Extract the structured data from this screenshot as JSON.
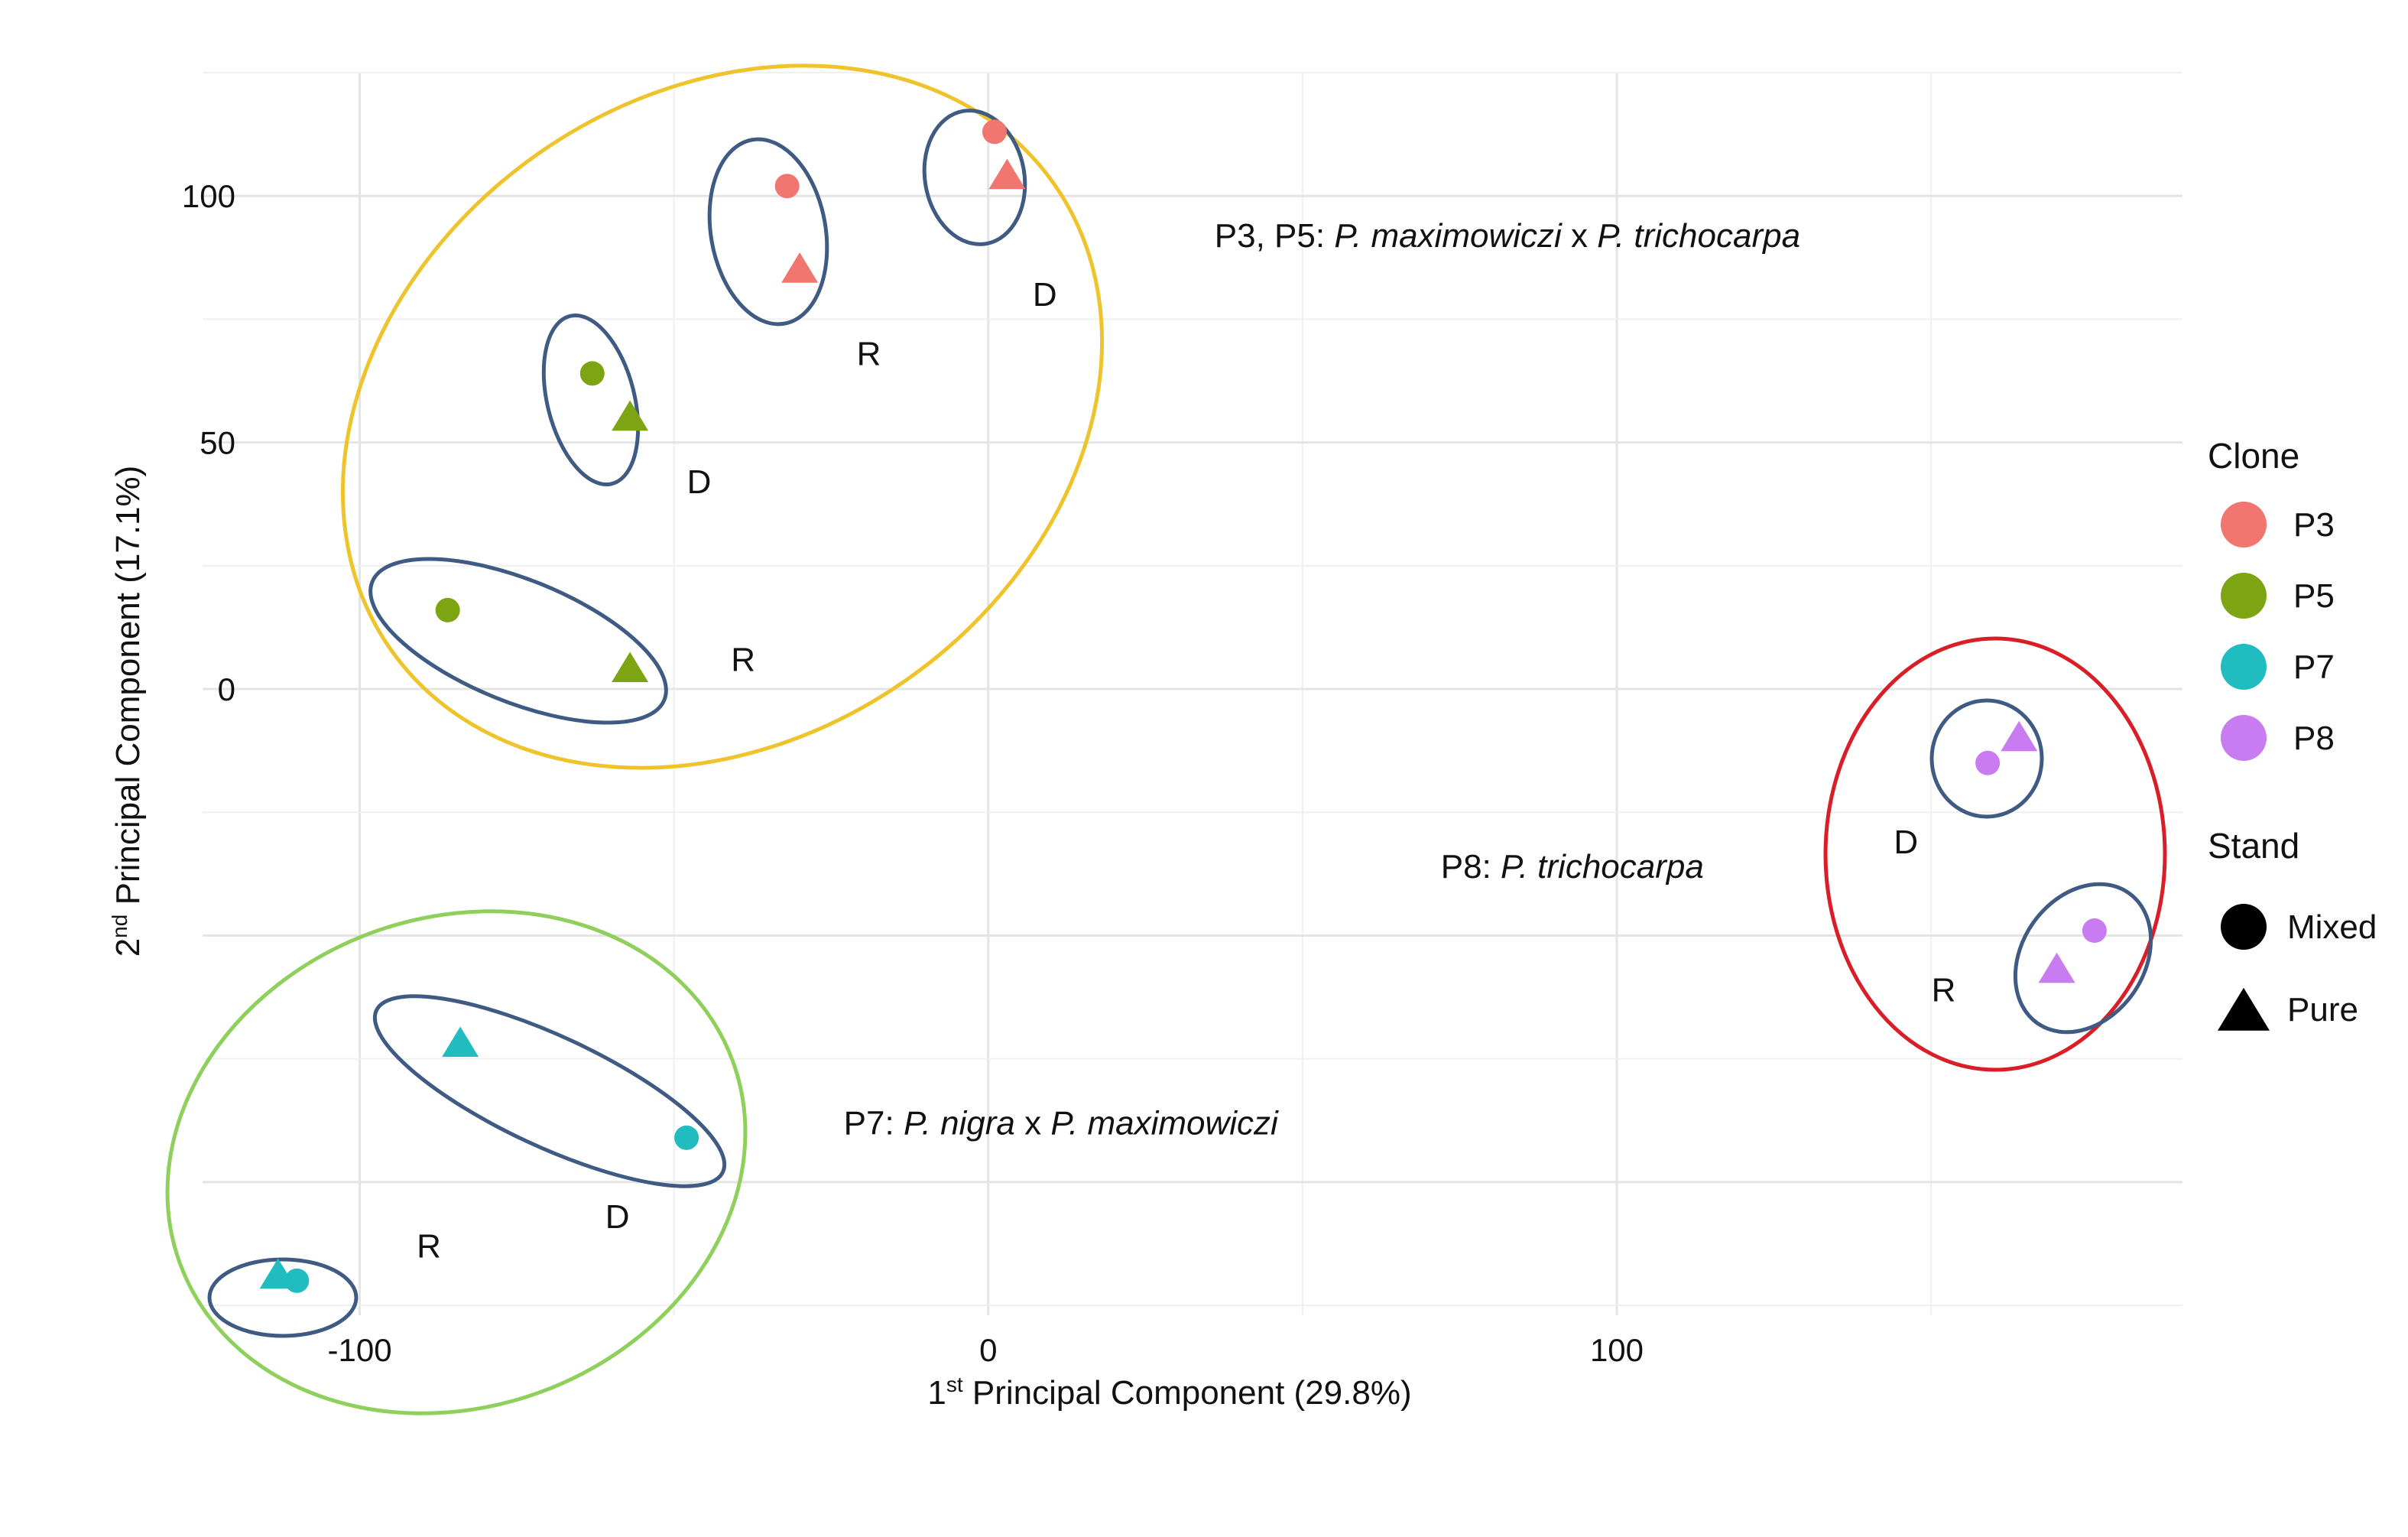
{
  "chart_data": {
    "type": "scatter",
    "xlabel": {
      "prefix": "1",
      "sup": "st",
      "rest": " Principal Component (29.8%)"
    },
    "ylabel": {
      "prefix": "2",
      "sup": "nd",
      "rest": " Principal Component (17.1%)"
    },
    "xlim": [
      -125,
      190
    ],
    "ylim": [
      -127,
      125
    ],
    "x_ticks": [
      -100,
      0,
      100
    ],
    "x_tick_labels": [
      "-100",
      "0",
      "100"
    ],
    "y_ticks": [
      0,
      50,
      100
    ],
    "y_tick_labels": [
      "0",
      "50",
      "100"
    ],
    "grid": true,
    "legend_position": "right",
    "legend": {
      "clone_title": "Clone",
      "clones": [
        {
          "name": "P3",
          "color": "#F0766F"
        },
        {
          "name": "P5",
          "color": "#7CA413"
        },
        {
          "name": "P7",
          "color": "#20BCC0"
        },
        {
          "name": "P8",
          "color": "#C97BF1"
        }
      ],
      "stand_title": "Stand",
      "stands": [
        {
          "name": "Mixed",
          "shape": "circle"
        },
        {
          "name": "Pure",
          "shape": "triangle"
        }
      ]
    },
    "points": [
      {
        "x": 1,
        "y": 113,
        "clone": "P3",
        "stand": "Mixed"
      },
      {
        "x": 3,
        "y": 104,
        "clone": "P3",
        "stand": "Pure"
      },
      {
        "x": -32,
        "y": 102,
        "clone": "P3",
        "stand": "Mixed"
      },
      {
        "x": -30,
        "y": 85,
        "clone": "P3",
        "stand": "Pure"
      },
      {
        "x": -63,
        "y": 64,
        "clone": "P5",
        "stand": "Mixed"
      },
      {
        "x": -57,
        "y": 55,
        "clone": "P5",
        "stand": "Pure"
      },
      {
        "x": -86,
        "y": 16,
        "clone": "P5",
        "stand": "Mixed"
      },
      {
        "x": -57,
        "y": 4,
        "clone": "P5",
        "stand": "Pure"
      },
      {
        "x": 159,
        "y": -15,
        "clone": "P8",
        "stand": "Mixed"
      },
      {
        "x": 164,
        "y": -10,
        "clone": "P8",
        "stand": "Pure"
      },
      {
        "x": 176,
        "y": -49,
        "clone": "P8",
        "stand": "Mixed"
      },
      {
        "x": 170,
        "y": -57,
        "clone": "P8",
        "stand": "Pure"
      },
      {
        "x": -84,
        "y": -72,
        "clone": "P7",
        "stand": "Pure"
      },
      {
        "x": -48,
        "y": -91,
        "clone": "P7",
        "stand": "Mixed"
      },
      {
        "x": -110,
        "y": -120,
        "clone": "P7",
        "stand": "Mixed"
      },
      {
        "x": -113,
        "y": -119,
        "clone": "P7",
        "stand": "Pure"
      }
    ],
    "annotations": [
      {
        "text": "D",
        "x": 9,
        "y": 80
      },
      {
        "text": "R",
        "x": -19,
        "y": 68
      },
      {
        "text": "D",
        "x": -46,
        "y": 42
      },
      {
        "text": "R",
        "x": -39,
        "y": 6
      },
      {
        "text": "D",
        "x": 146,
        "y": -31
      },
      {
        "text": "R",
        "x": 152,
        "y": -61
      },
      {
        "text": "D",
        "x": -59,
        "y": -107
      },
      {
        "text": "R",
        "x": -89,
        "y": -113
      }
    ],
    "group_labels": [
      {
        "x": 36,
        "y": 92,
        "parts": [
          {
            "t": "P3, P5: ",
            "i": false
          },
          {
            "t": "P. maximowiczi",
            "i": true
          },
          {
            "t": " x ",
            "i": false
          },
          {
            "t": "P. trichocarpa",
            "i": true
          }
        ]
      },
      {
        "x": 72,
        "y": -36,
        "parts": [
          {
            "t": "P8: ",
            "i": false
          },
          {
            "t": "P. trichocarpa",
            "i": true
          }
        ]
      },
      {
        "x": -23,
        "y": -88,
        "parts": [
          {
            "t": "P7: ",
            "i": false
          },
          {
            "t": "P. nigra",
            "i": true
          },
          {
            "t": " x ",
            "i": false
          },
          {
            "t": "P. maximowiczi",
            "i": true
          }
        ]
      }
    ]
  }
}
